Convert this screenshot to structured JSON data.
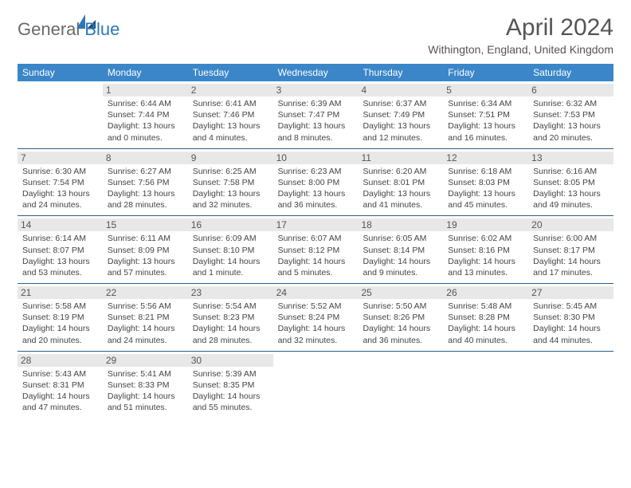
{
  "logo": {
    "part1": "General",
    "part2": "Blue"
  },
  "title": "April 2024",
  "subtitle": "Withington, England, United Kingdom",
  "colors": {
    "header_bg": "#3a86c8",
    "header_text": "#ffffff",
    "daynum_bg": "#e8e8e8",
    "row_border": "#2e5d88",
    "page_bg": "#ffffff",
    "title_color": "#555555",
    "logo_gray": "#6a6a6a",
    "logo_blue": "#2e77b8"
  },
  "typography": {
    "title_fontsize": 30,
    "subtitle_fontsize": 14,
    "dayhead_fontsize": 12,
    "daynum_fontsize": 12,
    "body_fontsize": 10.5
  },
  "dayheads": [
    "Sunday",
    "Monday",
    "Tuesday",
    "Wednesday",
    "Thursday",
    "Friday",
    "Saturday"
  ],
  "weeks": [
    [
      null,
      {
        "n": "1",
        "sunrise": "Sunrise: 6:44 AM",
        "sunset": "Sunset: 7:44 PM",
        "d1": "Daylight: 13 hours",
        "d2": "and 0 minutes."
      },
      {
        "n": "2",
        "sunrise": "Sunrise: 6:41 AM",
        "sunset": "Sunset: 7:46 PM",
        "d1": "Daylight: 13 hours",
        "d2": "and 4 minutes."
      },
      {
        "n": "3",
        "sunrise": "Sunrise: 6:39 AM",
        "sunset": "Sunset: 7:47 PM",
        "d1": "Daylight: 13 hours",
        "d2": "and 8 minutes."
      },
      {
        "n": "4",
        "sunrise": "Sunrise: 6:37 AM",
        "sunset": "Sunset: 7:49 PM",
        "d1": "Daylight: 13 hours",
        "d2": "and 12 minutes."
      },
      {
        "n": "5",
        "sunrise": "Sunrise: 6:34 AM",
        "sunset": "Sunset: 7:51 PM",
        "d1": "Daylight: 13 hours",
        "d2": "and 16 minutes."
      },
      {
        "n": "6",
        "sunrise": "Sunrise: 6:32 AM",
        "sunset": "Sunset: 7:53 PM",
        "d1": "Daylight: 13 hours",
        "d2": "and 20 minutes."
      }
    ],
    [
      {
        "n": "7",
        "sunrise": "Sunrise: 6:30 AM",
        "sunset": "Sunset: 7:54 PM",
        "d1": "Daylight: 13 hours",
        "d2": "and 24 minutes."
      },
      {
        "n": "8",
        "sunrise": "Sunrise: 6:27 AM",
        "sunset": "Sunset: 7:56 PM",
        "d1": "Daylight: 13 hours",
        "d2": "and 28 minutes."
      },
      {
        "n": "9",
        "sunrise": "Sunrise: 6:25 AM",
        "sunset": "Sunset: 7:58 PM",
        "d1": "Daylight: 13 hours",
        "d2": "and 32 minutes."
      },
      {
        "n": "10",
        "sunrise": "Sunrise: 6:23 AM",
        "sunset": "Sunset: 8:00 PM",
        "d1": "Daylight: 13 hours",
        "d2": "and 36 minutes."
      },
      {
        "n": "11",
        "sunrise": "Sunrise: 6:20 AM",
        "sunset": "Sunset: 8:01 PM",
        "d1": "Daylight: 13 hours",
        "d2": "and 41 minutes."
      },
      {
        "n": "12",
        "sunrise": "Sunrise: 6:18 AM",
        "sunset": "Sunset: 8:03 PM",
        "d1": "Daylight: 13 hours",
        "d2": "and 45 minutes."
      },
      {
        "n": "13",
        "sunrise": "Sunrise: 6:16 AM",
        "sunset": "Sunset: 8:05 PM",
        "d1": "Daylight: 13 hours",
        "d2": "and 49 minutes."
      }
    ],
    [
      {
        "n": "14",
        "sunrise": "Sunrise: 6:14 AM",
        "sunset": "Sunset: 8:07 PM",
        "d1": "Daylight: 13 hours",
        "d2": "and 53 minutes."
      },
      {
        "n": "15",
        "sunrise": "Sunrise: 6:11 AM",
        "sunset": "Sunset: 8:09 PM",
        "d1": "Daylight: 13 hours",
        "d2": "and 57 minutes."
      },
      {
        "n": "16",
        "sunrise": "Sunrise: 6:09 AM",
        "sunset": "Sunset: 8:10 PM",
        "d1": "Daylight: 14 hours",
        "d2": "and 1 minute."
      },
      {
        "n": "17",
        "sunrise": "Sunrise: 6:07 AM",
        "sunset": "Sunset: 8:12 PM",
        "d1": "Daylight: 14 hours",
        "d2": "and 5 minutes."
      },
      {
        "n": "18",
        "sunrise": "Sunrise: 6:05 AM",
        "sunset": "Sunset: 8:14 PM",
        "d1": "Daylight: 14 hours",
        "d2": "and 9 minutes."
      },
      {
        "n": "19",
        "sunrise": "Sunrise: 6:02 AM",
        "sunset": "Sunset: 8:16 PM",
        "d1": "Daylight: 14 hours",
        "d2": "and 13 minutes."
      },
      {
        "n": "20",
        "sunrise": "Sunrise: 6:00 AM",
        "sunset": "Sunset: 8:17 PM",
        "d1": "Daylight: 14 hours",
        "d2": "and 17 minutes."
      }
    ],
    [
      {
        "n": "21",
        "sunrise": "Sunrise: 5:58 AM",
        "sunset": "Sunset: 8:19 PM",
        "d1": "Daylight: 14 hours",
        "d2": "and 20 minutes."
      },
      {
        "n": "22",
        "sunrise": "Sunrise: 5:56 AM",
        "sunset": "Sunset: 8:21 PM",
        "d1": "Daylight: 14 hours",
        "d2": "and 24 minutes."
      },
      {
        "n": "23",
        "sunrise": "Sunrise: 5:54 AM",
        "sunset": "Sunset: 8:23 PM",
        "d1": "Daylight: 14 hours",
        "d2": "and 28 minutes."
      },
      {
        "n": "24",
        "sunrise": "Sunrise: 5:52 AM",
        "sunset": "Sunset: 8:24 PM",
        "d1": "Daylight: 14 hours",
        "d2": "and 32 minutes."
      },
      {
        "n": "25",
        "sunrise": "Sunrise: 5:50 AM",
        "sunset": "Sunset: 8:26 PM",
        "d1": "Daylight: 14 hours",
        "d2": "and 36 minutes."
      },
      {
        "n": "26",
        "sunrise": "Sunrise: 5:48 AM",
        "sunset": "Sunset: 8:28 PM",
        "d1": "Daylight: 14 hours",
        "d2": "and 40 minutes."
      },
      {
        "n": "27",
        "sunrise": "Sunrise: 5:45 AM",
        "sunset": "Sunset: 8:30 PM",
        "d1": "Daylight: 14 hours",
        "d2": "and 44 minutes."
      }
    ],
    [
      {
        "n": "28",
        "sunrise": "Sunrise: 5:43 AM",
        "sunset": "Sunset: 8:31 PM",
        "d1": "Daylight: 14 hours",
        "d2": "and 47 minutes."
      },
      {
        "n": "29",
        "sunrise": "Sunrise: 5:41 AM",
        "sunset": "Sunset: 8:33 PM",
        "d1": "Daylight: 14 hours",
        "d2": "and 51 minutes."
      },
      {
        "n": "30",
        "sunrise": "Sunrise: 5:39 AM",
        "sunset": "Sunset: 8:35 PM",
        "d1": "Daylight: 14 hours",
        "d2": "and 55 minutes."
      },
      null,
      null,
      null,
      null
    ]
  ]
}
